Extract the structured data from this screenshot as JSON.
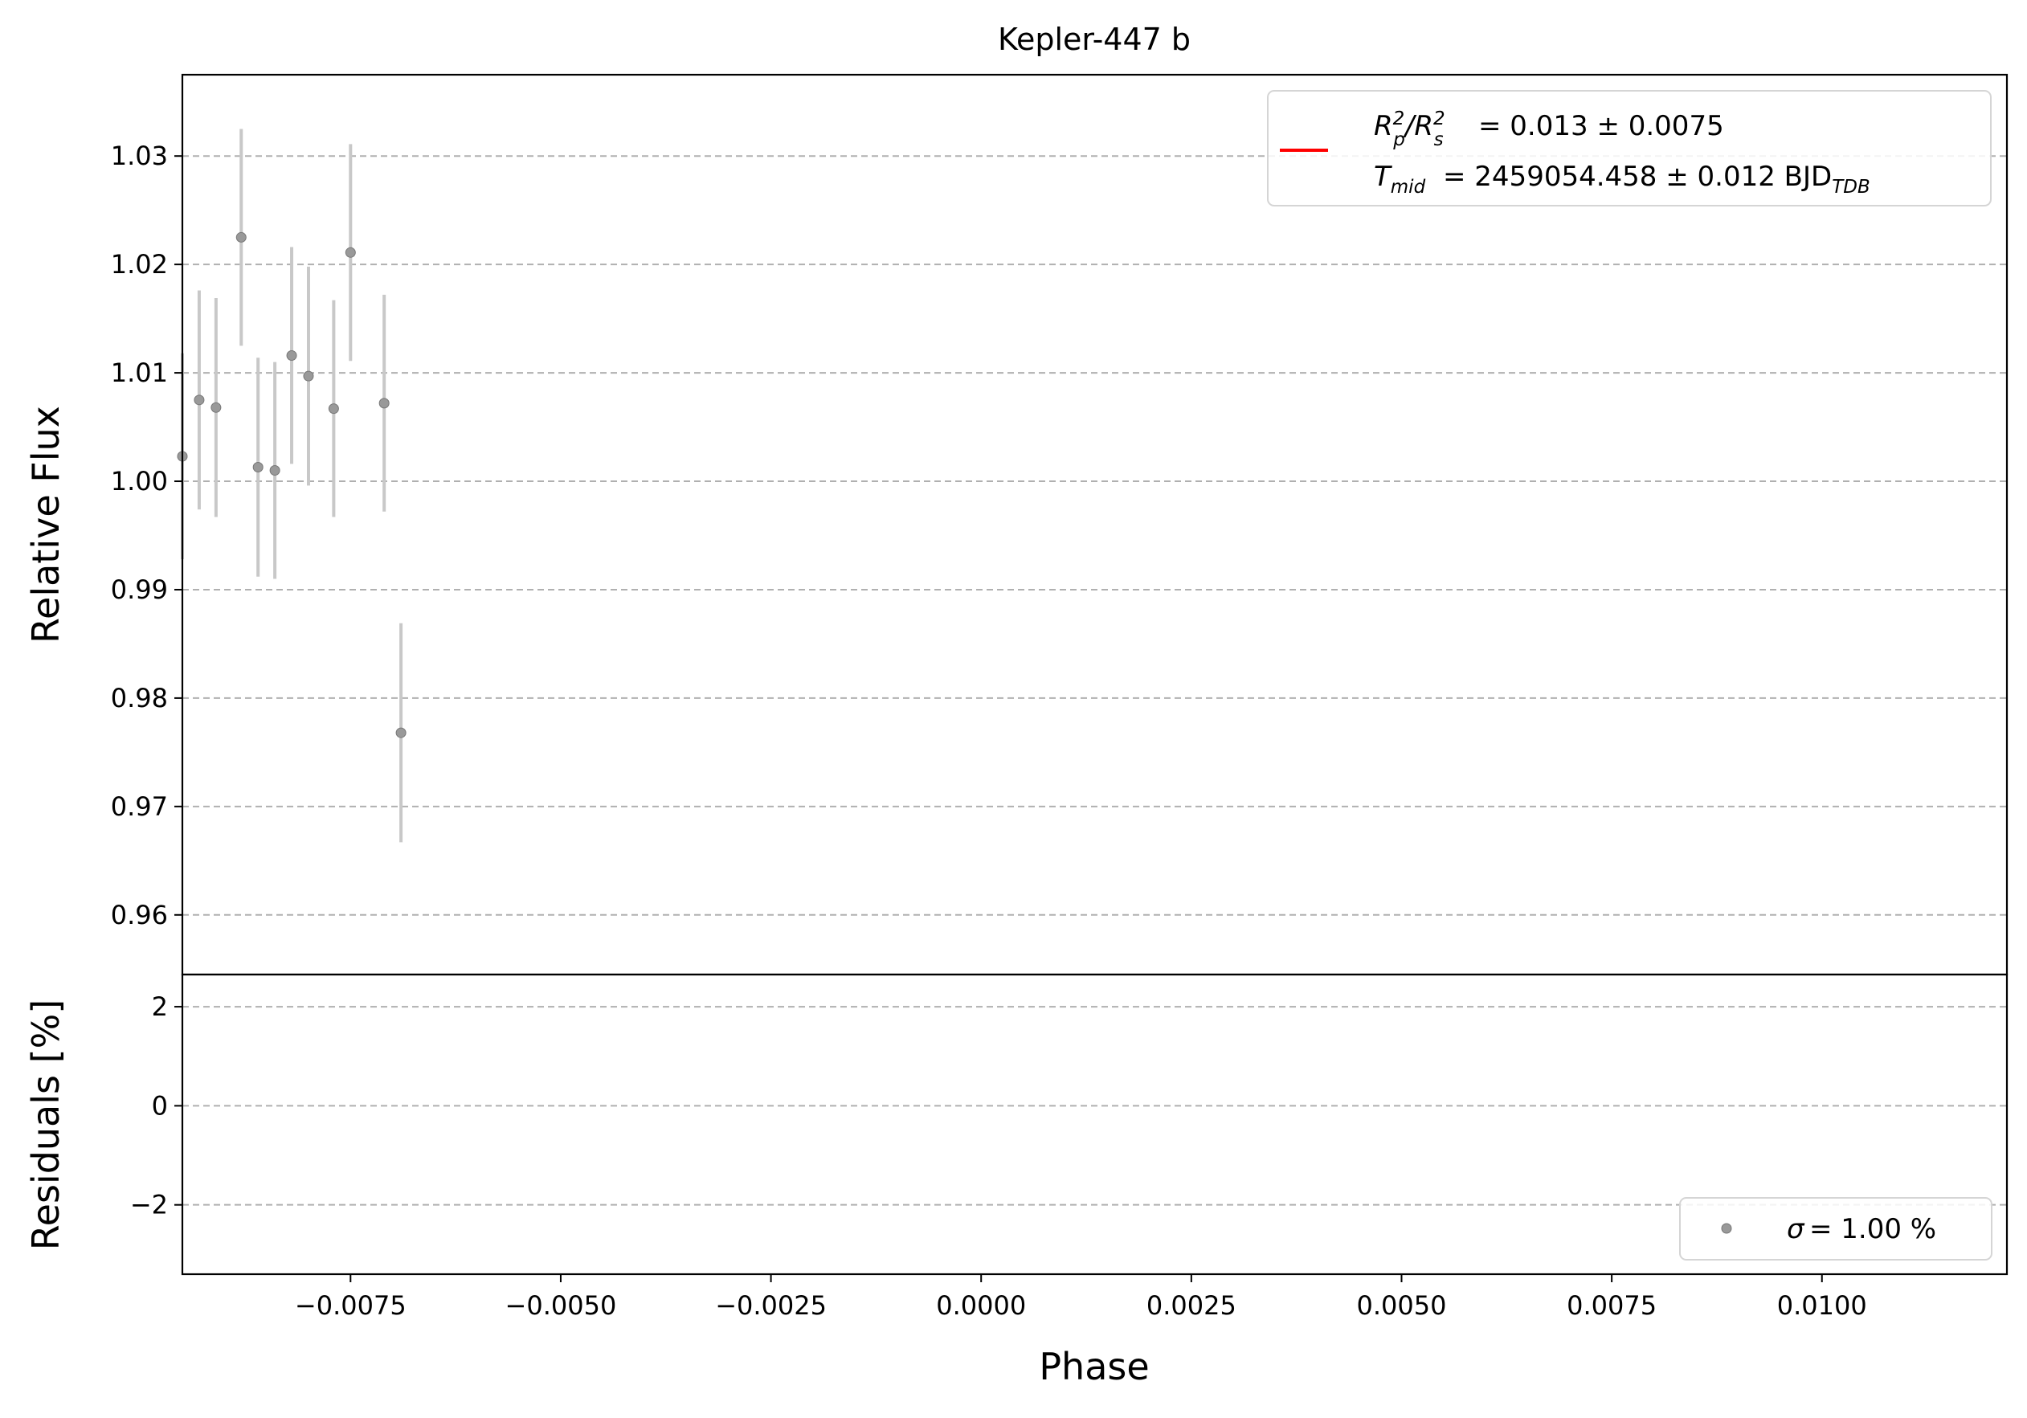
{
  "chart_data": {
    "type": "scatter",
    "title": "Kepler-447 b",
    "xlabel": "Phase",
    "ylabel_top": "Relative Flux",
    "ylabel_bottom": "Residuals [%]",
    "xlim": [
      -0.0095,
      0.0122
    ],
    "ylim_top": [
      0.9545,
      1.0375
    ],
    "ylim_bottom": [
      -3.4,
      2.65
    ],
    "xticks": [
      -0.0075,
      -0.005,
      -0.0025,
      0,
      0.0025,
      0.005,
      0.0075,
      0.01
    ],
    "xtick_labels": [
      "−0.0075",
      "−0.0050",
      "−0.0025",
      "0.0000",
      "0.0025",
      "0.0050",
      "0.0075",
      "0.0100"
    ],
    "yticks_top": [
      0.96,
      0.97,
      0.98,
      0.99,
      1.0,
      1.01,
      1.02,
      1.03
    ],
    "ytick_labels_top": [
      "0.96",
      "0.97",
      "0.98",
      "0.99",
      "1.00",
      "1.01",
      "1.02",
      "1.03"
    ],
    "yticks_bottom": [
      -2,
      0,
      2
    ],
    "ytick_labels_bottom": [
      "−2",
      "0",
      "2"
    ],
    "grid": "y-dashed",
    "legend_top": {
      "placement": "top-right",
      "line1": "= 0.013 ± 0.0075",
      "line2": "= 2459054.458 ± 0.012 BJD"
    },
    "legend_bottom": {
      "placement": "bottom-right",
      "label": "= 1.00 %"
    },
    "colors": {
      "raw": "#999999",
      "err": "#c8c8c8",
      "binned": "#0000ff",
      "model": "#ff0000"
    },
    "raw_points": [
      {
        "x": -0.0095,
        "y": 1.0023,
        "e": 0.0095
      },
      {
        "x": -0.0093,
        "y": 1.0075,
        "e": 0.0101
      },
      {
        "x": -0.0091,
        "y": 1.0068,
        "e": 0.0101
      },
      {
        "x": -0.0088,
        "y": 1.0225,
        "e": 0.01
      },
      {
        "x": -0.0086,
        "y": 1.0013,
        "e": 0.0101
      },
      {
        "x": -0.0084,
        "y": 1.001,
        "e": 0.01
      },
      {
        "x": -0.0082,
        "y": 1.0116,
        "e": 0.01
      },
      {
        "x": -0.008,
        "y": 1.0097,
        "e": 0.0101
      },
      {
        "x": -0.0077,
        "y": 1.0067,
        "e": 0.01
      },
      {
        "x": -0.0075,
        "y": 1.0211,
        "e": 0.01
      },
      {
        "x": -0.0071,
        "y": 1.0072,
        "e": 0.01
      },
      {
        "x": -0.0069,
        "y": 0.9768,
        "e": 0.0101
      }
    ],
    "binned": {
      "x": [],
      "y": [],
      "e": []
    },
    "model": {
      "x": [],
      "y": []
    },
    "residuals": {
      "x": [],
      "y": []
    },
    "binned_residuals": {
      "x": [],
      "y": []
    }
  }
}
